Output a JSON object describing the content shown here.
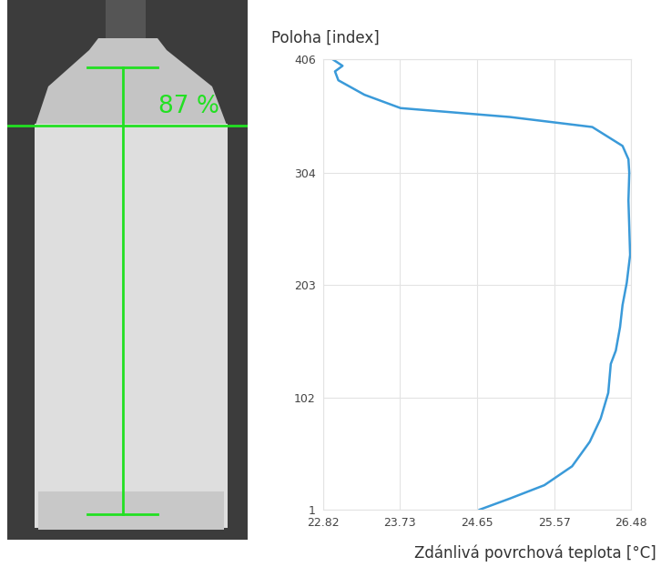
{
  "chart_data": {
    "type": "line",
    "ylabel": "Poloha [index]",
    "xlabel": "Zdánlivá povrchová teplota [°C]",
    "x": [
      24.68,
      25.04,
      25.45,
      25.78,
      25.99,
      26.12,
      26.21,
      26.24,
      26.3,
      26.35,
      26.38,
      26.43,
      26.47,
      26.46,
      26.45,
      26.46,
      26.45,
      26.38,
      26.02,
      25.04,
      24.39,
      23.74,
      23.31,
      23.0,
      22.96,
      23.05,
      22.93
    ],
    "values": [
      1,
      11,
      23,
      40,
      62,
      83,
      106,
      132,
      144,
      165,
      185,
      205,
      230,
      255,
      279,
      304,
      316,
      328,
      345,
      354,
      358,
      362,
      374,
      387,
      395,
      400,
      406
    ],
    "color": "#3a9ad9",
    "xlim": [
      22.82,
      26.48
    ],
    "xticks": [
      22.82,
      23.73,
      24.65,
      25.57,
      26.48
    ],
    "ylim": [
      1,
      406
    ],
    "yticks": [
      1,
      102,
      203,
      304,
      406
    ],
    "grid": true
  },
  "thermal_image": {
    "fill_level": {
      "value": 87,
      "label": "87 %"
    },
    "color": "#22e022"
  }
}
